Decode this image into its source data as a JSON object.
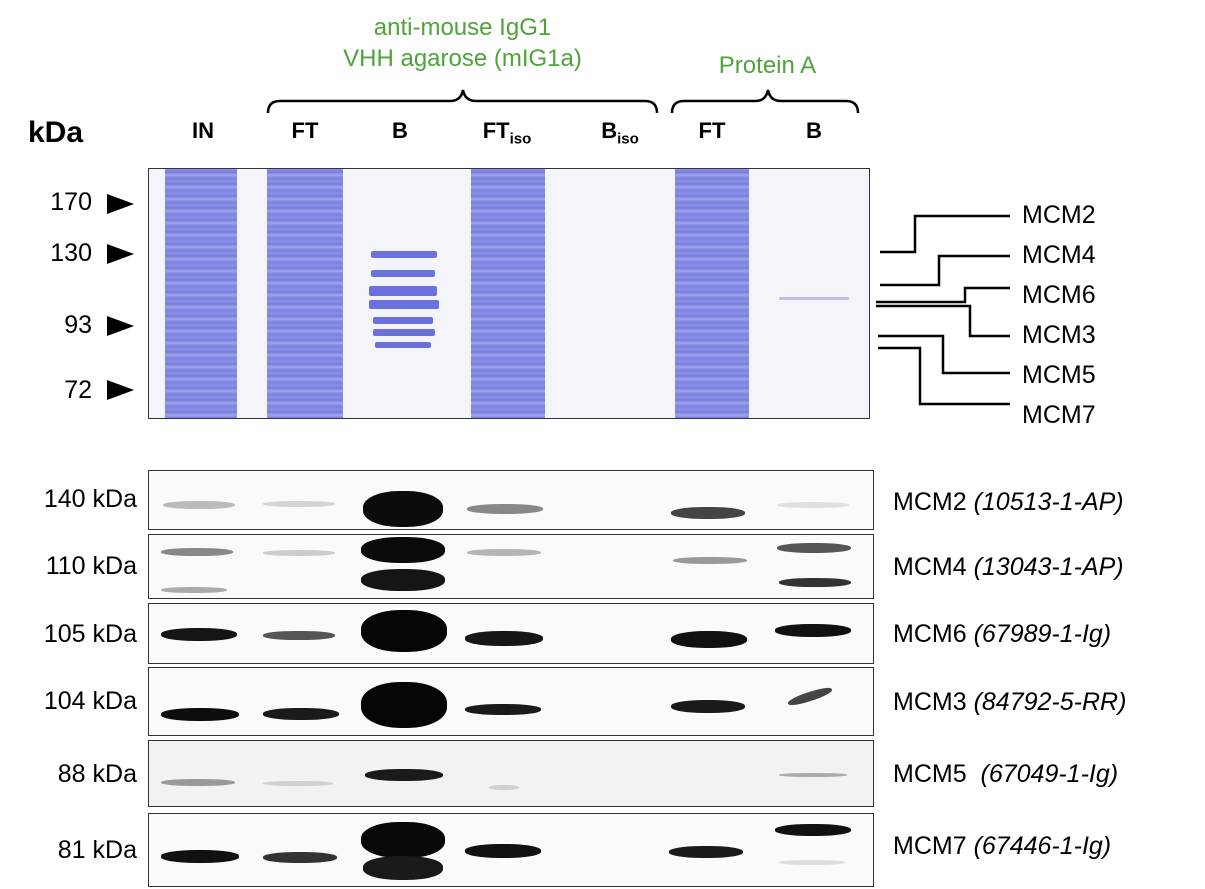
{
  "header": {
    "group1_line1": "anti-mouse IgG1",
    "group1_line2": "VHH agarose (mIG1a)",
    "group2": "Protein A"
  },
  "lanes": {
    "in": "IN",
    "ft1": "FT",
    "b1": "B",
    "ftiso": "FT",
    "ftiso_sub": "iso",
    "biso": "B",
    "biso_sub": "iso",
    "ft2": "FT",
    "b2": "B"
  },
  "kda_label": "kDa",
  "markers": [
    "170",
    "130",
    "93",
    "72"
  ],
  "gel_labels": [
    "MCM2",
    "MCM4",
    "MCM6",
    "MCM3",
    "MCM5",
    "MCM7"
  ],
  "blots": [
    {
      "kda": "140 kDa",
      "protein": "MCM2",
      "antibody": "(10513-1-AP)"
    },
    {
      "kda": "110 kDa",
      "protein": "MCM4",
      "antibody": "(13043-1-AP)"
    },
    {
      "kda": "105 kDa",
      "protein": "MCM6",
      "antibody": "(67989-1-Ig)"
    },
    {
      "kda": "104 kDa",
      "protein": "MCM3",
      "antibody": "(84792-5-RR)"
    },
    {
      "kda": "88 kDa",
      "protein": "MCM5",
      "antibody": "(67049-1-Ig)"
    },
    {
      "kda": "81 kDa",
      "protein": "MCM7",
      "antibody": "(67446-1-Ig)"
    }
  ],
  "colors": {
    "group_label": "#4ea33a",
    "coomassie": "#6f76de"
  }
}
